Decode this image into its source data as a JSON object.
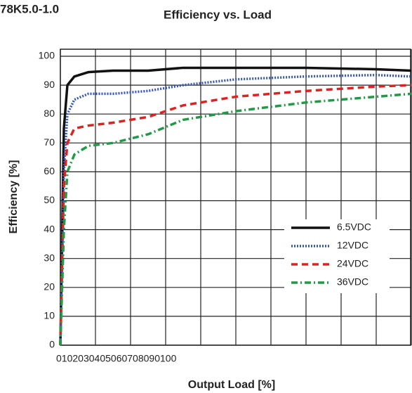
{
  "chart_data": {
    "type": "line",
    "label": "78K5.0-1.0",
    "title": "Efficiency vs. Load",
    "x_label": "Output Load [%]",
    "y_label": "Efficiency [%]",
    "x": [
      0,
      1,
      2,
      4,
      8,
      15,
      25,
      35,
      50,
      70,
      90,
      100
    ],
    "series": [
      {
        "name": "6.5VDC",
        "color": "#111111",
        "dash": "solid",
        "values": [
          0,
          75,
          90,
          93,
          94.5,
          95,
          95,
          96,
          96,
          96,
          95.5,
          95
        ]
      },
      {
        "name": "12VDC",
        "color": "#3355bb",
        "dash": "dotted",
        "values": [
          0,
          60,
          80,
          85,
          87,
          87,
          88,
          90,
          92,
          93,
          93.5,
          93
        ]
      },
      {
        "name": "24VDC",
        "color": "#dd2222",
        "dash": "dashed",
        "values": [
          0,
          55,
          70,
          75,
          76,
          77,
          79,
          83,
          86,
          88,
          89.5,
          90
        ]
      },
      {
        "name": "36VDC",
        "color": "#229944",
        "dash": "dashdot",
        "values": [
          0,
          40,
          60,
          66,
          69,
          70,
          73,
          78,
          81,
          84,
          86,
          87
        ]
      }
    ],
    "xlim": [
      0,
      100
    ],
    "xticks": [
      0,
      10,
      20,
      30,
      40,
      50,
      60,
      70,
      80,
      90,
      100
    ],
    "ylim": [
      0,
      100
    ],
    "yticks": [
      0,
      10,
      20,
      30,
      40,
      50,
      60,
      70,
      80,
      90,
      100
    ],
    "grid": true,
    "legend": "right"
  }
}
